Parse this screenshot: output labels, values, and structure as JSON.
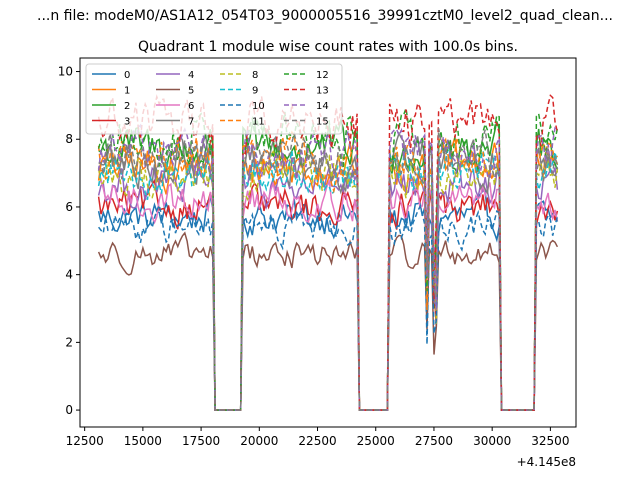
{
  "chart_data": {
    "type": "line",
    "suptitle": "...n file: modeM0/AS1A12_054T03_9000005516_39991cztM0_level2_quad_clean...",
    "title": "Quadrant 1 module wise count rates with 100.0s bins.",
    "xlabel": "",
    "ylabel": "",
    "x_offset_label": "+4.145e8",
    "xlim": [
      12300,
      33600
    ],
    "ylim": [
      -0.5,
      10.4
    ],
    "xticks": [
      12500,
      15000,
      17500,
      20000,
      22500,
      25000,
      27500,
      30000,
      32500
    ],
    "yticks": [
      0,
      2,
      4,
      6,
      8,
      10
    ],
    "grid": false,
    "legend_position": "top-left",
    "legend_columns": 4,
    "x_range": [
      13100,
      32800
    ],
    "bin": 100,
    "gaps": [
      [
        18050,
        19200
      ],
      [
        24300,
        25500
      ],
      [
        30400,
        31800
      ]
    ],
    "dips": [
      27200,
      27550
    ],
    "series": [
      {
        "name": "0",
        "color": "#1f77b4",
        "dash": "solid",
        "level": 5.7
      },
      {
        "name": "1",
        "color": "#ff7f0e",
        "dash": "solid",
        "level": 7.2
      },
      {
        "name": "2",
        "color": "#2ca02c",
        "dash": "solid",
        "level": 7.7
      },
      {
        "name": "3",
        "color": "#d62728",
        "dash": "solid",
        "level": 6.0
      },
      {
        "name": "4",
        "color": "#9467bd",
        "dash": "solid",
        "level": 6.6
      },
      {
        "name": "5",
        "color": "#8c564b",
        "dash": "solid",
        "level": 4.6
      },
      {
        "name": "6",
        "color": "#e377c2",
        "dash": "solid",
        "level": 6.2
      },
      {
        "name": "7",
        "color": "#7f7f7f",
        "dash": "solid",
        "level": 7.3
      },
      {
        "name": "8",
        "color": "#bcbd22",
        "dash": "dashed",
        "level": 6.9
      },
      {
        "name": "9",
        "color": "#17becf",
        "dash": "dashed",
        "level": 7.0
      },
      {
        "name": "10",
        "color": "#1f77b4",
        "dash": "dashed",
        "level": 5.4
      },
      {
        "name": "11",
        "color": "#ff7f0e",
        "dash": "dashed",
        "level": 7.4
      },
      {
        "name": "12",
        "color": "#2ca02c",
        "dash": "dashed",
        "level": 8.0
      },
      {
        "name": "13",
        "color": "#d62728",
        "dash": "dashed",
        "level": 8.5
      },
      {
        "name": "14",
        "color": "#9467bd",
        "dash": "dashed",
        "level": 7.6
      },
      {
        "name": "15",
        "color": "#7f7f7f",
        "dash": "dashed",
        "level": 7.4
      }
    ]
  }
}
